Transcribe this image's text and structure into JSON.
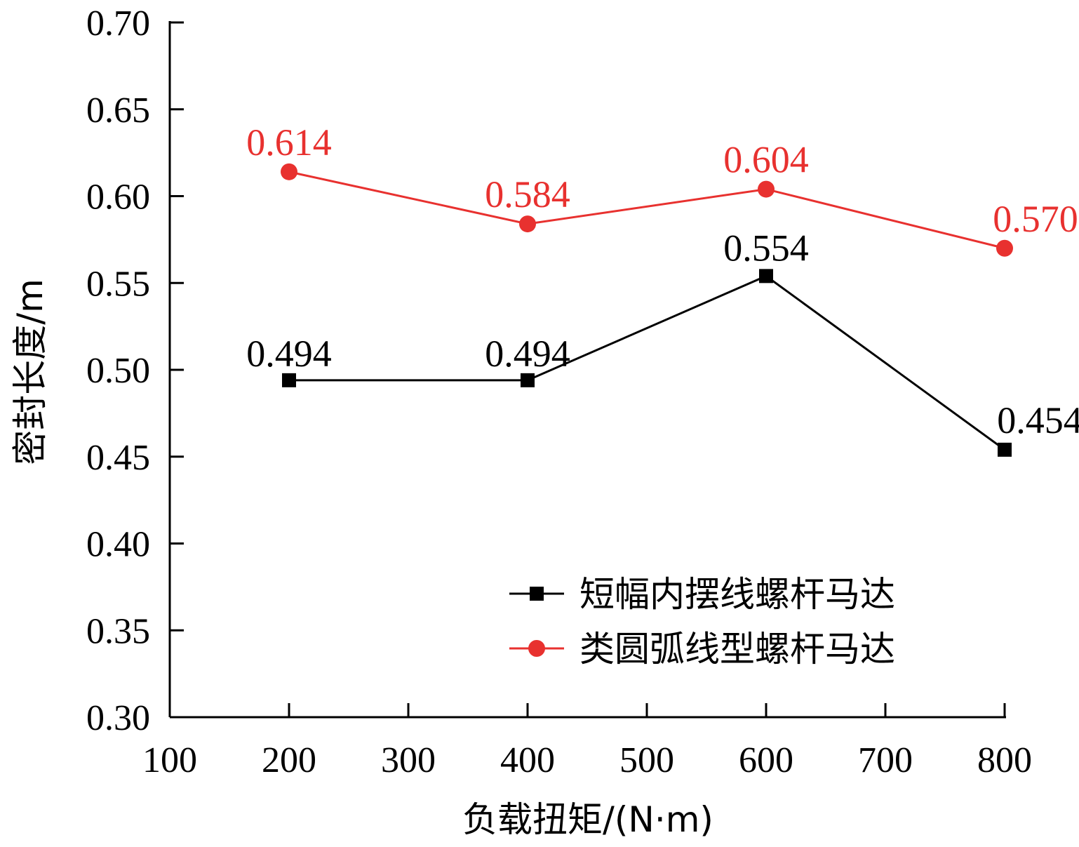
{
  "chart_data": {
    "type": "line",
    "title": "",
    "xlabel": "负载扭矩/(N·m)",
    "ylabel": "密封长度/m",
    "xlim": [
      100,
      800
    ],
    "ylim": [
      0.3,
      0.7
    ],
    "xticks": [
      100,
      200,
      300,
      400,
      500,
      600,
      700,
      800
    ],
    "xtick_labels": [
      "100",
      "200",
      "300",
      "400",
      "500",
      "600",
      "700",
      "800"
    ],
    "yticks": [
      0.3,
      0.35,
      0.4,
      0.45,
      0.5,
      0.55,
      0.6,
      0.65,
      0.7
    ],
    "ytick_labels": [
      "0.30",
      "0.35",
      "0.40",
      "0.45",
      "0.50",
      "0.55",
      "0.60",
      "0.65",
      "0.70"
    ],
    "grid": false,
    "legend_position": "bottom-right",
    "x": [
      200,
      400,
      600,
      800
    ],
    "series": [
      {
        "name": "短幅内摆线螺杆马达",
        "values": [
          0.494,
          0.494,
          0.554,
          0.454
        ],
        "labels": [
          "0.494",
          "0.494",
          "0.554",
          "0.454"
        ],
        "color": "#000000",
        "marker": "square"
      },
      {
        "name": "类圆弧线型螺杆马达",
        "values": [
          0.614,
          0.584,
          0.604,
          0.57
        ],
        "labels": [
          "0.614",
          "0.584",
          "0.604",
          "0.570"
        ],
        "color": "#e8312f",
        "marker": "circle"
      }
    ]
  }
}
